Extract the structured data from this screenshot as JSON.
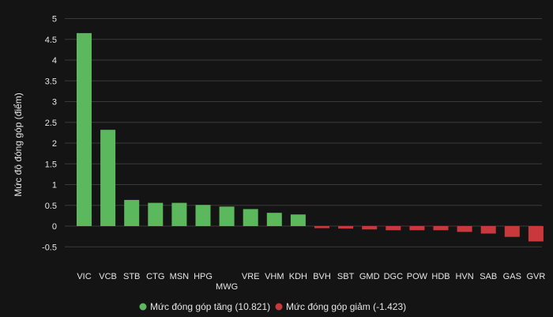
{
  "chart_data": {
    "type": "bar",
    "title": "",
    "ylabel": "Mức độ đóng góp (điểm)",
    "xlabel": "",
    "ylim": [
      -0.5,
      5
    ],
    "yticks": [
      5,
      4.5,
      4,
      3.5,
      3,
      2.5,
      2,
      1.5,
      1,
      0.5,
      0,
      -0.5
    ],
    "ytick_labels": [
      "5",
      "4.5",
      "4",
      "3.5",
      "3",
      "2.5",
      "2",
      "1.5",
      "1",
      "0.5",
      "0",
      "-0.5"
    ],
    "grid": true,
    "legend_position": "bottom",
    "categories": [
      "VIC",
      "VCB",
      "STB",
      "CTG",
      "MSN",
      "HPG",
      "MWG",
      "VRE",
      "VHM",
      "KDH",
      "BVH",
      "SBT",
      "GMD",
      "DGC",
      "POW",
      "HDB",
      "HVN",
      "SAB",
      "GAS",
      "GVR"
    ],
    "values": [
      4.65,
      2.32,
      0.63,
      0.56,
      0.56,
      0.51,
      0.47,
      0.41,
      0.32,
      0.28,
      -0.05,
      -0.06,
      -0.08,
      -0.1,
      -0.1,
      -0.1,
      -0.14,
      -0.18,
      -0.26,
      -0.37
    ],
    "series": [
      {
        "name": "Mức đóng góp tăng (10.821)",
        "color": "#5cb85c"
      },
      {
        "name": "Mức đóng góp giảm (-1.423)",
        "color": "#c9393c"
      }
    ]
  }
}
